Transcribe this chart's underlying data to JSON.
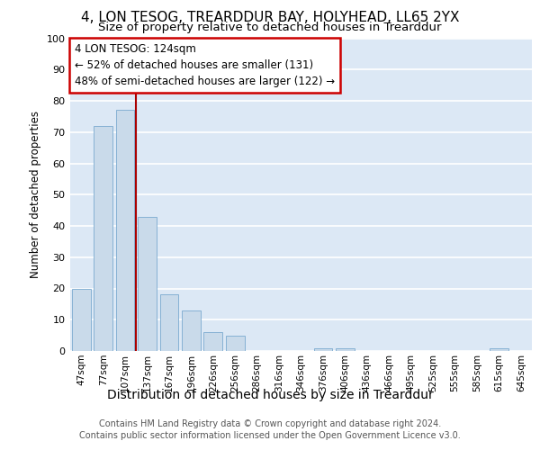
{
  "title1": "4, LON TESOG, TREARDDUR BAY, HOLYHEAD, LL65 2YX",
  "title2": "Size of property relative to detached houses in Trearddur",
  "xlabel": "Distribution of detached houses by size in Trearddur",
  "ylabel": "Number of detached properties",
  "categories": [
    "47sqm",
    "77sqm",
    "107sqm",
    "137sqm",
    "167sqm",
    "196sqm",
    "226sqm",
    "256sqm",
    "286sqm",
    "316sqm",
    "346sqm",
    "376sqm",
    "406sqm",
    "436sqm",
    "466sqm",
    "495sqm",
    "525sqm",
    "555sqm",
    "585sqm",
    "615sqm",
    "645sqm"
  ],
  "values": [
    20,
    72,
    77,
    43,
    18,
    13,
    6,
    5,
    0,
    0,
    0,
    1,
    1,
    0,
    0,
    0,
    0,
    0,
    0,
    1,
    0
  ],
  "bar_color": "#c9daea",
  "bar_edge_color": "#7aaacf",
  "vline_color": "#aa0000",
  "annotation_line1": "4 LON TESOG: 124sqm",
  "annotation_line2": "← 52% of detached houses are smaller (131)",
  "annotation_line3": "48% of semi-detached houses are larger (122) →",
  "annotation_box_color": "#ffffff",
  "annotation_box_edge": "#cc0000",
  "ylim": [
    0,
    100
  ],
  "yticks": [
    0,
    10,
    20,
    30,
    40,
    50,
    60,
    70,
    80,
    90,
    100
  ],
  "background_color": "#dce8f5",
  "grid_color": "#ffffff",
  "footer_line1": "Contains HM Land Registry data © Crown copyright and database right 2024.",
  "footer_line2": "Contains public sector information licensed under the Open Government Licence v3.0.",
  "title1_fontsize": 11,
  "title2_fontsize": 9.5,
  "xlabel_fontsize": 10,
  "ylabel_fontsize": 8.5,
  "annotation_fontsize": 8.5,
  "footer_fontsize": 7,
  "tick_fontsize": 8,
  "xtick_fontsize": 7.5
}
